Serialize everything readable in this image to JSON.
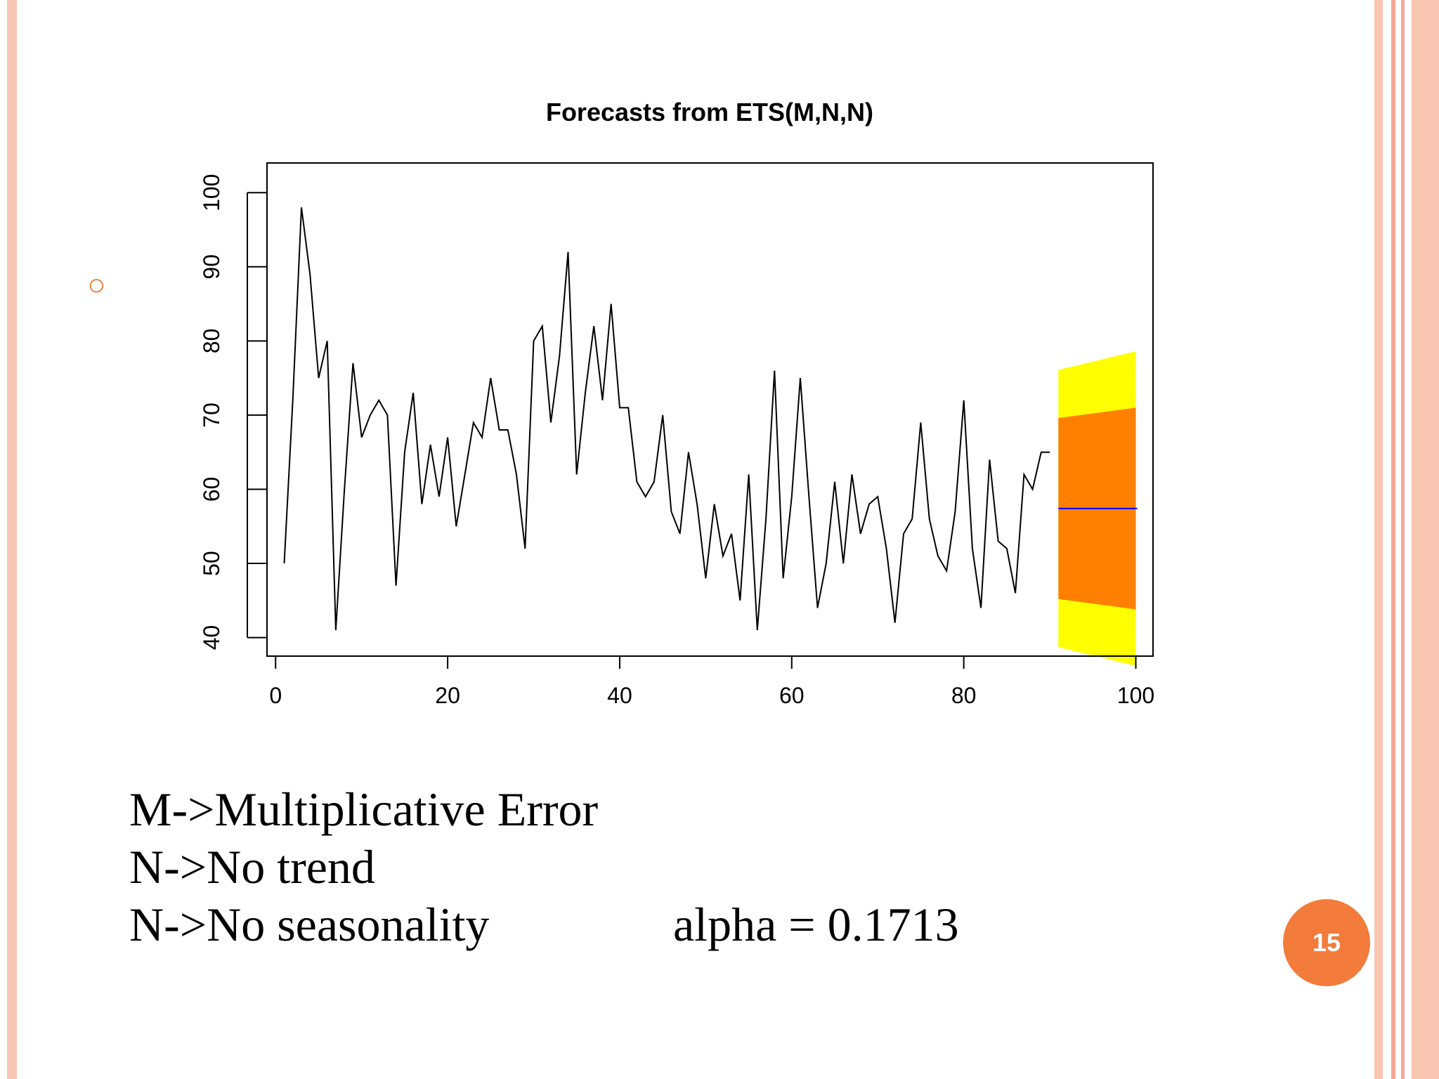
{
  "theme": {
    "accent": "#f37b3b",
    "band_light": "#f8c6b3",
    "band_pink": "#f4a69a",
    "fan_80": "#ff7f00",
    "fan_95": "#ffff00",
    "forecast_line": "#0000ff"
  },
  "bullet_icon": "hollow-circle-bullet",
  "chart_data": {
    "type": "line",
    "title": "Forecasts from ETS(M,N,N)",
    "xlabel": "",
    "ylabel": "",
    "xlim": [
      -1,
      102
    ],
    "ylim": [
      37.5,
      104
    ],
    "x_ticks": [
      0,
      20,
      40,
      60,
      80,
      100
    ],
    "y_ticks": [
      40,
      50,
      60,
      70,
      80,
      90,
      100
    ],
    "grid": false,
    "legend": "none",
    "series": [
      {
        "x": [
          1,
          2,
          3,
          4,
          5,
          6,
          7,
          8,
          9,
          10,
          11,
          12,
          13,
          14,
          15,
          16,
          17,
          18,
          19,
          20,
          21,
          22,
          23,
          24,
          25,
          26,
          27,
          28,
          29,
          30,
          31,
          32,
          33,
          34,
          35,
          36,
          37,
          38,
          39,
          40,
          41,
          42,
          43,
          44,
          45,
          46,
          47,
          48,
          49,
          50,
          51,
          52,
          53,
          54,
          55,
          56,
          57,
          58,
          59,
          60,
          61,
          62,
          63,
          64,
          65,
          66,
          67,
          68,
          69,
          70,
          71,
          72,
          73,
          74,
          75,
          76,
          77,
          78,
          79,
          80,
          81,
          82,
          83,
          84,
          85,
          86,
          87,
          88,
          89,
          90
        ],
        "values": [
          50,
          72,
          98,
          89,
          75,
          80,
          41,
          60,
          77,
          67,
          70,
          72,
          70,
          47,
          65,
          73,
          58,
          66,
          59,
          67,
          55,
          62,
          69,
          67,
          75,
          68,
          68,
          62,
          52,
          80,
          82,
          69,
          78,
          92,
          62,
          73,
          82,
          72,
          85,
          71,
          71,
          61,
          59,
          61,
          70,
          57,
          54,
          65,
          58,
          48,
          58,
          51,
          54,
          45,
          62,
          41,
          56,
          76,
          48,
          59,
          75,
          59,
          44,
          50,
          61,
          50,
          62,
          54,
          58,
          59,
          52,
          42,
          54,
          56,
          69,
          56,
          51,
          49,
          57,
          72,
          52,
          44,
          64,
          53,
          52,
          46,
          62,
          60,
          65,
          65
        ]
      }
    ],
    "forecast": {
      "x": [
        91,
        100
      ],
      "point": [
        57.4,
        57.4
      ],
      "lo80": [
        45.2,
        43.8
      ],
      "hi80": [
        69.6,
        71.0
      ],
      "lo95": [
        38.7,
        36.2
      ],
      "hi95": [
        76.1,
        78.6
      ]
    }
  },
  "lines": {
    "line1": "M->Multiplicative Error",
    "line2": "N->No trend",
    "line3": "N->No seasonality",
    "alpha": "alpha = 0.1713"
  },
  "page_number": "15"
}
